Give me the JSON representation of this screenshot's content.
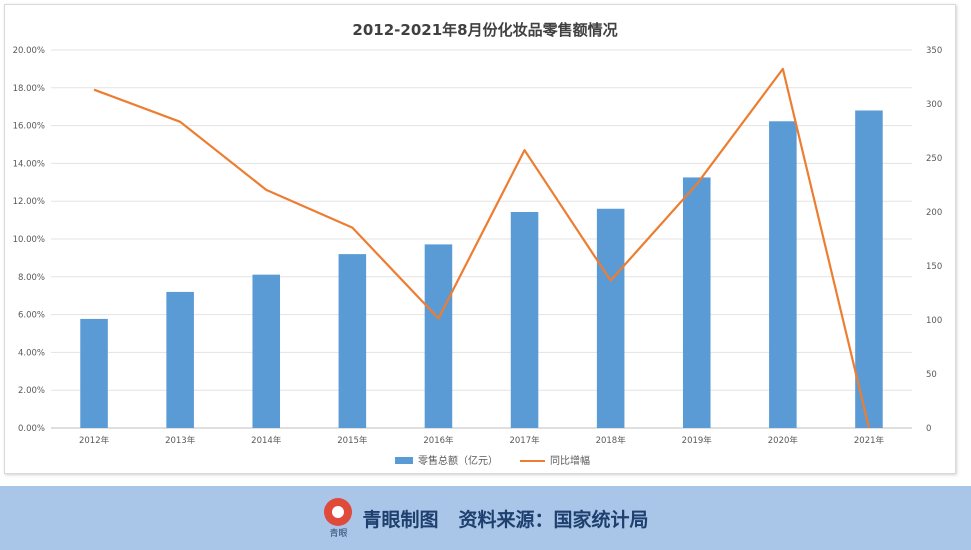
{
  "chart_data": {
    "type": "bar+line",
    "title": "2012-2021年8月份化妆品零售额情况",
    "categories": [
      "2012年",
      "2013年",
      "2014年",
      "2015年",
      "2016年",
      "2017年",
      "2018年",
      "2019年",
      "2020年",
      "2021年"
    ],
    "series": [
      {
        "name": "零售总额（亿元）",
        "type": "bar",
        "axis": "right",
        "values": [
          101,
          126,
          142,
          161,
          170,
          200,
          203,
          232,
          284,
          294
        ],
        "color": "#5b9bd5"
      },
      {
        "name": "同比增幅",
        "type": "line",
        "axis": "left",
        "values": [
          17.9,
          16.2,
          12.6,
          10.6,
          5.8,
          14.7,
          7.8,
          12.9,
          19.0,
          0.0
        ],
        "color": "#ed7d31"
      }
    ],
    "left_axis": {
      "ticks": [
        "0.00%",
        "2.00%",
        "4.00%",
        "6.00%",
        "8.00%",
        "10.00%",
        "12.00%",
        "14.00%",
        "16.00%",
        "18.00%",
        "20.00%"
      ],
      "ylim": [
        0,
        20
      ]
    },
    "right_axis": {
      "ticks": [
        "0",
        "50",
        "100",
        "150",
        "200",
        "250",
        "300",
        "350"
      ],
      "ylim": [
        0,
        350
      ]
    },
    "grid": true,
    "legend_position": "bottom"
  },
  "footer": {
    "logo_text": "青眼",
    "brand": "青眼制图",
    "source": "资料来源：国家统计局"
  }
}
